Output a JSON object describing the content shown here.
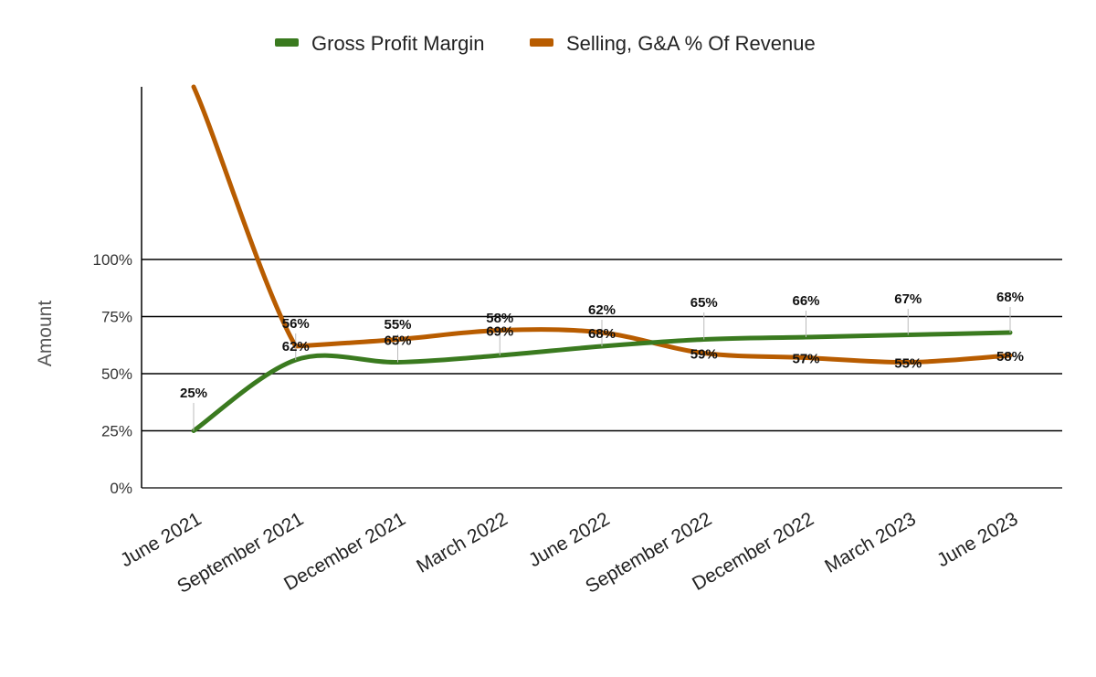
{
  "chart_data": {
    "type": "line",
    "title": "",
    "xlabel": "",
    "ylabel": "Amount",
    "categories": [
      "June 2021",
      "September 2021",
      "December 2021",
      "March 2022",
      "June 2022",
      "September 2022",
      "December 2022",
      "March 2023",
      "June 2023"
    ],
    "series": [
      {
        "name": "Gross Profit Margin",
        "color": "#3a7a1f",
        "values": [
          25,
          56,
          55,
          58,
          62,
          65,
          66,
          67,
          68
        ],
        "labels": [
          "25%",
          "56%",
          "55%",
          "58%",
          "62%",
          "65%",
          "66%",
          "67%",
          "68%"
        ]
      },
      {
        "name": "Selling, G&A % Of Revenue",
        "color": "#b85c00",
        "values": [
          null,
          62,
          65,
          69,
          68,
          59,
          57,
          55,
          58
        ],
        "labels": [
          "",
          "62%",
          "65%",
          "69%",
          "68%",
          "59%",
          "57%",
          "55%",
          "58%"
        ]
      }
    ],
    "ylim": [
      0,
      100
    ],
    "yticks": [
      0,
      25,
      50,
      75,
      100
    ],
    "ytick_labels": [
      "0%",
      "25%",
      "50%",
      "75%",
      "100%"
    ],
    "grid": true,
    "legend_position": "top-center"
  }
}
